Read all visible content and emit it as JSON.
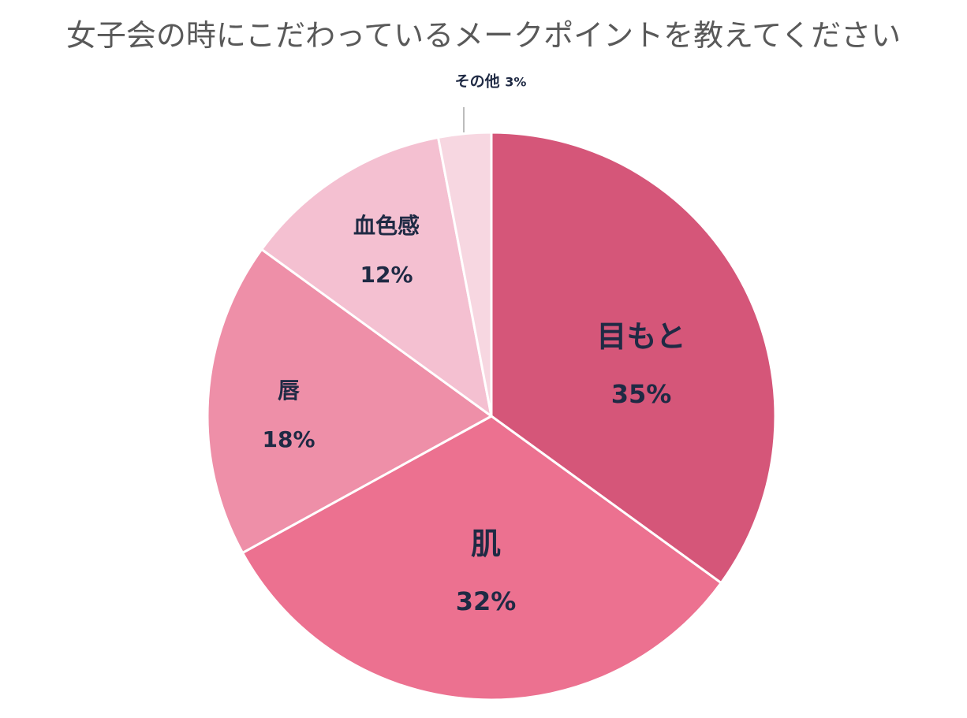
{
  "title": "女子会の時にこだわっているメークポイントを教えてください",
  "chart_data": {
    "type": "pie",
    "title": "女子会の時にこだわっているメークポイントを教えてください",
    "start_angle_deg": 0,
    "direction": "clockwise",
    "categories": [
      "目もと",
      "肌",
      "唇",
      "血色感",
      "その他"
    ],
    "values": [
      35,
      32,
      18,
      12,
      3
    ],
    "labels": [
      "35%",
      "32%",
      "18%",
      "12%",
      "3%"
    ],
    "colors": [
      "#D55679",
      "#EC7190",
      "#EE8FA8",
      "#F4C0D1",
      "#F7D7E1"
    ],
    "legend": "none",
    "data_labels": "category name and percentage inside slices; その他 outside with leader line"
  },
  "slices": [
    {
      "name": "目もと",
      "pct": "35%"
    },
    {
      "name": "肌",
      "pct": "32%"
    },
    {
      "name": "唇",
      "pct": "18%"
    },
    {
      "name": "血色感",
      "pct": "12%"
    },
    {
      "name": "その他",
      "pct": "3%"
    }
  ],
  "colors": {
    "title_text": "#595959",
    "label_text": "#1F2A44",
    "slice_border": "#FFFFFF",
    "leader_line": "#A6A6A6"
  }
}
